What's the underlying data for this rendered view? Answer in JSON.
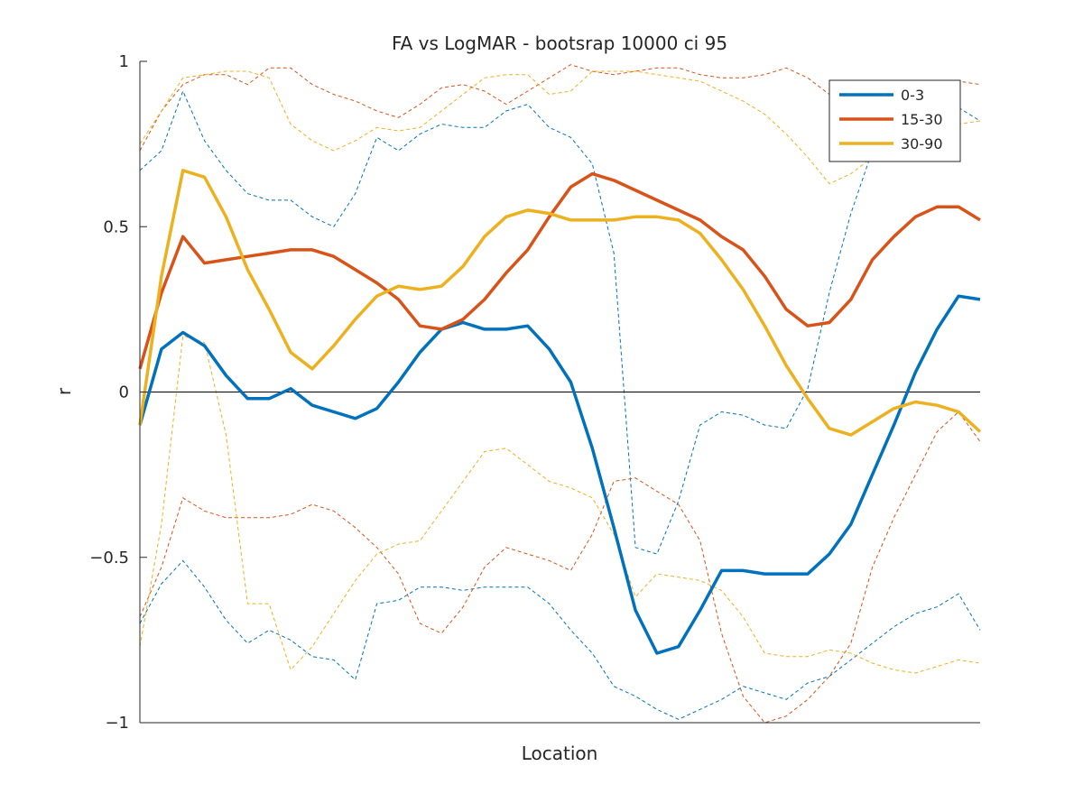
{
  "chart_data": {
    "type": "line",
    "title": "FA vs LogMAR - bootsrap 10000 ci 95",
    "xlabel": "Location",
    "ylabel": "r",
    "xlim": [
      1,
      40
    ],
    "ylim": [
      -1,
      1
    ],
    "yticks": [
      -1,
      -0.5,
      0,
      0.5,
      1
    ],
    "ytick_labels": [
      "−1",
      "−0.5",
      "0",
      "0.5",
      "1"
    ],
    "zero_line": true,
    "legend": {
      "position": "top-right",
      "entries": [
        "0-3",
        "15-30",
        "30-90"
      ]
    },
    "x": [
      1,
      2,
      3,
      4,
      5,
      6,
      7,
      8,
      9,
      10,
      11,
      12,
      13,
      14,
      15,
      16,
      17,
      18,
      19,
      20,
      21,
      22,
      23,
      24,
      25,
      26,
      27,
      28,
      29,
      30,
      31,
      32,
      33,
      34,
      35,
      36,
      37,
      38,
      39,
      40
    ],
    "series": [
      {
        "name": "0-3",
        "color": "#0072bd",
        "values": [
          -0.1,
          0.13,
          0.18,
          0.14,
          0.05,
          -0.02,
          -0.02,
          0.01,
          -0.04,
          -0.06,
          -0.08,
          -0.05,
          0.03,
          0.12,
          0.19,
          0.21,
          0.19,
          0.19,
          0.2,
          0.13,
          0.03,
          -0.17,
          -0.41,
          -0.66,
          -0.79,
          -0.77,
          -0.66,
          -0.54,
          -0.54,
          -0.55,
          -0.55,
          -0.55,
          -0.49,
          -0.4,
          -0.25,
          -0.1,
          0.06,
          0.19,
          0.29,
          0.28
        ],
        "ci_upper": [
          0.67,
          0.73,
          0.91,
          0.76,
          0.67,
          0.6,
          0.58,
          0.58,
          0.53,
          0.5,
          0.6,
          0.77,
          0.73,
          0.78,
          0.81,
          0.8,
          0.8,
          0.85,
          0.87,
          0.8,
          0.77,
          0.69,
          0.42,
          -0.47,
          -0.49,
          -0.33,
          -0.1,
          -0.06,
          -0.07,
          -0.1,
          -0.11,
          0.01,
          0.3,
          0.54,
          0.73,
          0.85,
          0.88,
          0.88,
          0.86,
          0.82
        ],
        "ci_lower": [
          -0.7,
          -0.58,
          -0.51,
          -0.59,
          -0.69,
          -0.76,
          -0.72,
          -0.75,
          -0.8,
          -0.81,
          -0.87,
          -0.64,
          -0.63,
          -0.59,
          -0.59,
          -0.6,
          -0.59,
          -0.59,
          -0.59,
          -0.64,
          -0.72,
          -0.79,
          -0.89,
          -0.92,
          -0.96,
          -0.99,
          -0.96,
          -0.93,
          -0.89,
          -0.91,
          -0.93,
          -0.88,
          -0.86,
          -0.81,
          -0.76,
          -0.71,
          -0.67,
          -0.65,
          -0.61,
          -0.72
        ]
      },
      {
        "name": "15-30",
        "color": "#d95319",
        "values": [
          0.07,
          0.3,
          0.47,
          0.39,
          0.4,
          0.41,
          0.42,
          0.43,
          0.43,
          0.41,
          0.37,
          0.33,
          0.28,
          0.2,
          0.19,
          0.22,
          0.28,
          0.36,
          0.43,
          0.53,
          0.62,
          0.66,
          0.64,
          0.61,
          0.58,
          0.55,
          0.52,
          0.47,
          0.43,
          0.35,
          0.25,
          0.2,
          0.21,
          0.28,
          0.4,
          0.47,
          0.53,
          0.56,
          0.56,
          0.52
        ],
        "ci_upper": [
          0.73,
          0.85,
          0.93,
          0.96,
          0.96,
          0.93,
          0.98,
          0.98,
          0.93,
          0.9,
          0.88,
          0.85,
          0.83,
          0.87,
          0.92,
          0.93,
          0.91,
          0.87,
          0.91,
          0.95,
          0.99,
          0.97,
          0.96,
          0.97,
          0.98,
          0.98,
          0.96,
          0.95,
          0.95,
          0.96,
          0.98,
          0.95,
          0.9,
          0.88,
          0.88,
          0.9,
          0.92,
          0.94,
          0.94,
          0.93
        ],
        "ci_lower": [
          -0.68,
          -0.53,
          -0.32,
          -0.36,
          -0.38,
          -0.38,
          -0.38,
          -0.37,
          -0.34,
          -0.36,
          -0.41,
          -0.47,
          -0.55,
          -0.7,
          -0.73,
          -0.65,
          -0.53,
          -0.47,
          -0.49,
          -0.51,
          -0.54,
          -0.43,
          -0.27,
          -0.26,
          -0.3,
          -0.34,
          -0.45,
          -0.73,
          -0.92,
          -1.0,
          -0.98,
          -0.93,
          -0.86,
          -0.76,
          -0.53,
          -0.38,
          -0.25,
          -0.12,
          -0.06,
          -0.15
        ]
      },
      {
        "name": "30-90",
        "color": "#edb120",
        "values": [
          -0.1,
          0.35,
          0.67,
          0.65,
          0.53,
          0.37,
          0.25,
          0.12,
          0.07,
          0.14,
          0.22,
          0.29,
          0.32,
          0.31,
          0.32,
          0.38,
          0.47,
          0.53,
          0.55,
          0.54,
          0.52,
          0.52,
          0.52,
          0.53,
          0.53,
          0.52,
          0.48,
          0.4,
          0.31,
          0.2,
          0.08,
          -0.02,
          -0.11,
          -0.13,
          -0.09,
          -0.05,
          -0.03,
          -0.04,
          -0.06,
          -0.12
        ],
        "ci_upper": [
          0.75,
          0.85,
          0.95,
          0.96,
          0.97,
          0.97,
          0.95,
          0.81,
          0.76,
          0.73,
          0.76,
          0.8,
          0.79,
          0.8,
          0.85,
          0.9,
          0.95,
          0.96,
          0.96,
          0.9,
          0.91,
          0.97,
          0.97,
          0.97,
          0.96,
          0.95,
          0.94,
          0.91,
          0.88,
          0.84,
          0.78,
          0.71,
          0.63,
          0.66,
          0.71,
          0.75,
          0.77,
          0.79,
          0.81,
          0.82
        ],
        "ci_lower": [
          -0.77,
          -0.4,
          0.17,
          0.15,
          -0.13,
          -0.64,
          -0.64,
          -0.84,
          -0.77,
          -0.67,
          -0.57,
          -0.49,
          -0.46,
          -0.45,
          -0.36,
          -0.27,
          -0.18,
          -0.17,
          -0.22,
          -0.27,
          -0.29,
          -0.32,
          -0.43,
          -0.62,
          -0.55,
          -0.56,
          -0.57,
          -0.6,
          -0.68,
          -0.79,
          -0.8,
          -0.8,
          -0.78,
          -0.79,
          -0.82,
          -0.84,
          -0.85,
          -0.83,
          -0.81,
          -0.82
        ]
      }
    ]
  }
}
